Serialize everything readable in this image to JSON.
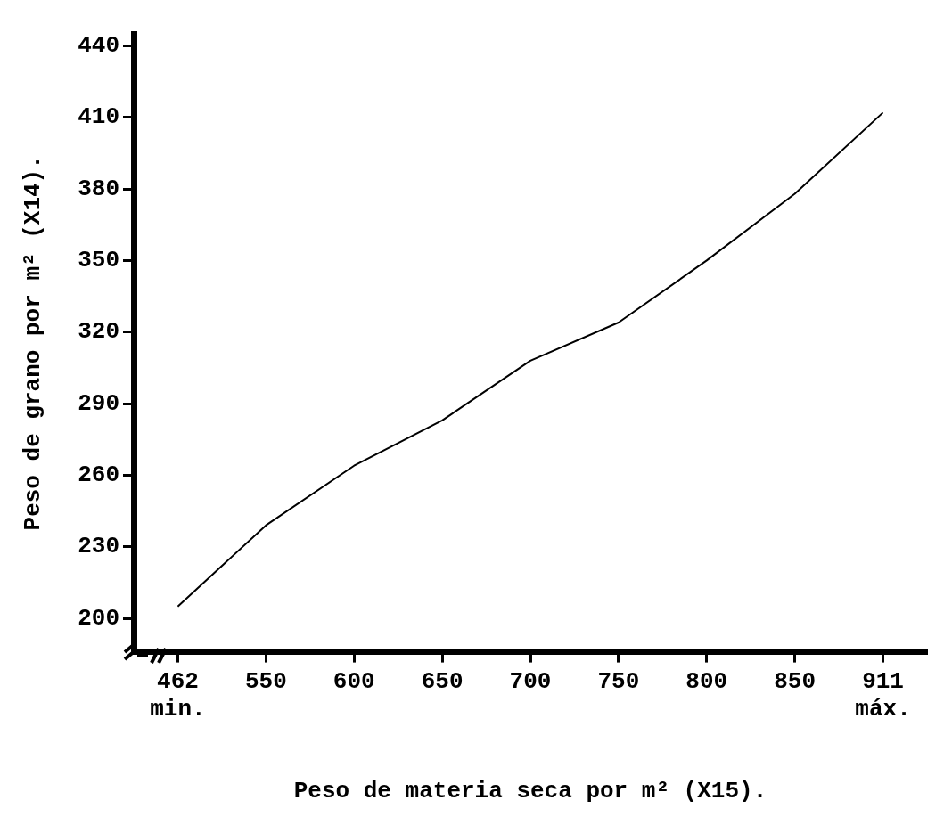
{
  "chart_data": {
    "type": "line",
    "xlabel": "Peso de materia seca por m² (X15).",
    "ylabel": "Peso de grano por m² (X14).",
    "categories": [
      "462",
      "550",
      "600",
      "650",
      "700",
      "750",
      "800",
      "850",
      "911"
    ],
    "series": [
      {
        "color": "#000000",
        "values": [
          205,
          239,
          264,
          283,
          308,
          324,
          350,
          378,
          412
        ]
      }
    ],
    "ylim": [
      186,
      445
    ],
    "yticks": [
      200,
      230,
      260,
      290,
      320,
      350,
      380,
      410,
      440
    ],
    "annotations": [
      "min.",
      "máx."
    ],
    "grid": false,
    "legend": false,
    "marker": "none",
    "line_style": "solid"
  }
}
